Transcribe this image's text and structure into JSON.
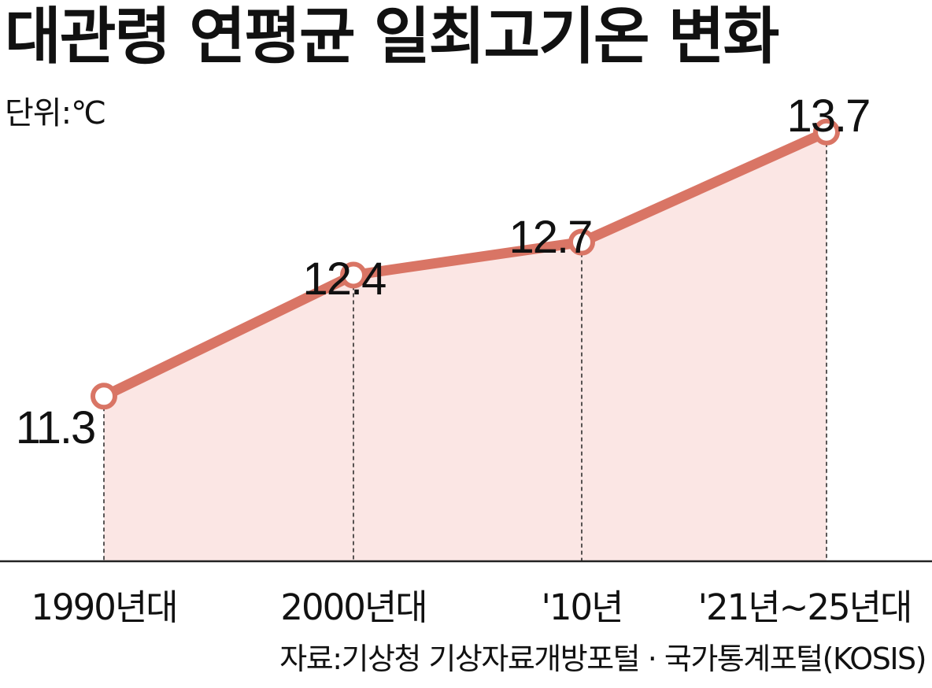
{
  "title": "대관령 연평균 일최고기온 변화",
  "unit_label": "단위:℃",
  "source": "자료:기상청 기상자료개방포털 · 국가통계포털(KOSIS)",
  "chart_data": {
    "type": "area",
    "title": "대관령 연평균 일최고기온 변화",
    "unit": "℃",
    "categories": [
      "1990년대",
      "2000년대",
      "'10년",
      "'21년~25년대"
    ],
    "values": [
      11.3,
      12.4,
      12.7,
      13.7
    ],
    "data_labels": [
      "11.3",
      "12.4",
      "12.7",
      "13.7"
    ],
    "ylim": [
      9.8,
      14.9
    ],
    "grid": false,
    "legend": "none",
    "colors": {
      "line": "#d97565",
      "fill": "#fbe6e4",
      "marker_fill": "#ffffff",
      "axis": "#222222",
      "guide": "#222222"
    }
  }
}
